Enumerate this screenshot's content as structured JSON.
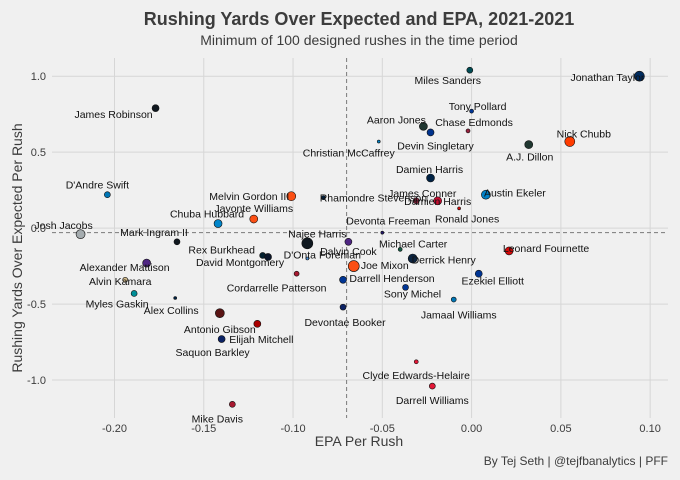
{
  "chart_data": {
    "type": "scatter",
    "title": "Rushing Yards Over Expected and EPA, 2021-2021",
    "subtitle": "Minimum of 100 designed rushes in the time period",
    "xlabel": "EPA Per Rush",
    "ylabel": "Rushing Yards Over Expected Per Rush",
    "caption": "By Tej Seth | @tejfbanalytics | PFF",
    "xlim": [
      -0.235,
      0.11
    ],
    "ylim": [
      -1.25,
      1.12
    ],
    "xticks": [
      -0.2,
      -0.15,
      -0.1,
      -0.05,
      0.0,
      0.05,
      0.1
    ],
    "xtick_labels": [
      "-0.20",
      "-0.15",
      "-0.10",
      "-0.05",
      "0.00",
      "0.05",
      "0.10"
    ],
    "yticks": [
      -1.0,
      -0.5,
      0.0,
      0.5,
      1.0
    ],
    "ytick_labels": [
      "-1.0",
      "-0.5",
      "0.0",
      "0.5",
      "1.0"
    ],
    "vline_x": -0.07,
    "hline_y": -0.03,
    "grid": true,
    "points": [
      {
        "name": "Miles Sanders",
        "x": -0.001,
        "y": 1.04,
        "size": 3,
        "color": "#004c54"
      },
      {
        "name": "Jonathan Taylor",
        "x": 0.094,
        "y": 1.0,
        "size": 5,
        "color": "#002c5f"
      },
      {
        "name": "James Robinson",
        "x": -0.177,
        "y": 0.79,
        "size": 3.5,
        "color": "#101820"
      },
      {
        "name": "Tony Pollard",
        "x": 0.0,
        "y": 0.77,
        "size": 2,
        "color": "#003594"
      },
      {
        "name": "Aaron Jones",
        "x": -0.027,
        "y": 0.67,
        "size": 4,
        "color": "#203731"
      },
      {
        "name": "Chase Edmonds",
        "x": -0.002,
        "y": 0.64,
        "size": 2,
        "color": "#97233f"
      },
      {
        "name": "Devin Singletary",
        "x": -0.023,
        "y": 0.63,
        "size": 3.5,
        "color": "#00338d"
      },
      {
        "name": "Nick Chubb",
        "x": 0.055,
        "y": 0.57,
        "size": 5,
        "color": "#ff3c00"
      },
      {
        "name": "A.J. Dillon",
        "x": 0.032,
        "y": 0.55,
        "size": 4,
        "color": "#203731"
      },
      {
        "name": "Christian McCaffrey",
        "x": -0.052,
        "y": 0.57,
        "size": 1.5,
        "color": "#0085ca"
      },
      {
        "name": "Damien Harris",
        "x": -0.023,
        "y": 0.33,
        "size": 4,
        "color": "#002244"
      },
      {
        "name": "D'Andre Swift",
        "x": -0.204,
        "y": 0.22,
        "size": 3,
        "color": "#0076b6"
      },
      {
        "name": "Melvin Gordon III",
        "x": -0.101,
        "y": 0.21,
        "size": 4.5,
        "color": "#fb4f14"
      },
      {
        "name": "Rhamondre Stevenson",
        "x": -0.083,
        "y": 0.2,
        "size": 2,
        "color": "#002244"
      },
      {
        "name": "Austin Ekeler",
        "x": 0.008,
        "y": 0.22,
        "size": 4.5,
        "color": "#0080c6"
      },
      {
        "name": "James Conner",
        "x": -0.031,
        "y": 0.18,
        "size": 3,
        "color": "#97233f"
      },
      {
        "name": "Damien Harris",
        "x": -0.019,
        "y": 0.18,
        "size": 4,
        "color": "#c60c30"
      },
      {
        "name": "Ronald Jones",
        "x": -0.007,
        "y": 0.13,
        "size": 1.5,
        "color": "#d50a0a"
      },
      {
        "name": "Javonte Williams",
        "x": -0.122,
        "y": 0.06,
        "size": 4,
        "color": "#fb4f14"
      },
      {
        "name": "Josh Jacobs",
        "x": -0.219,
        "y": -0.04,
        "size": 4.5,
        "color": "#a5acaf"
      },
      {
        "name": "Chuba Hubbard",
        "x": -0.142,
        "y": 0.03,
        "size": 4,
        "color": "#0085ca"
      },
      {
        "name": "Devonta Freeman",
        "x": -0.05,
        "y": -0.03,
        "size": 1.5,
        "color": "#241773"
      },
      {
        "name": "Najee Harris",
        "x": -0.092,
        "y": -0.1,
        "size": 5.5,
        "color": "#101820"
      },
      {
        "name": "Dalvin Cook",
        "x": -0.069,
        "y": -0.09,
        "size": 3.5,
        "color": "#4f2683"
      },
      {
        "name": "Michael Carter",
        "x": -0.04,
        "y": -0.14,
        "size": 2,
        "color": "#125740"
      },
      {
        "name": "Leonard Fournette",
        "x": 0.021,
        "y": -0.15,
        "size": 4,
        "color": "#d50a0a"
      },
      {
        "name": "Rex Burkhead",
        "x": -0.117,
        "y": -0.18,
        "size": 3,
        "color": "#03202f"
      },
      {
        "name": "Mark Ingram II",
        "x": -0.165,
        "y": -0.09,
        "size": 3,
        "color": "#101820"
      },
      {
        "name": "Derrick Henry",
        "x": -0.033,
        "y": -0.2,
        "size": 4.5,
        "color": "#0c2340"
      },
      {
        "name": "Joe Mixon",
        "x": -0.066,
        "y": -0.25,
        "size": 5.5,
        "color": "#fb4f14"
      },
      {
        "name": "David Montgomery",
        "x": -0.114,
        "y": -0.19,
        "size": 3.5,
        "color": "#0b162a"
      },
      {
        "name": "Alexander Mattison",
        "x": -0.182,
        "y": -0.23,
        "size": 4,
        "color": "#4f2683"
      },
      {
        "name": "D'Onta Foreman",
        "x": -0.092,
        "y": -0.2,
        "size": 1.5,
        "color": "#4b92db"
      },
      {
        "name": "Alvin Kamara",
        "x": -0.194,
        "y": -0.34,
        "size": 2.5,
        "color": "#d3bc8d"
      },
      {
        "name": "Cordarrelle Patterson",
        "x": -0.098,
        "y": -0.3,
        "size": 2.5,
        "color": "#a71930"
      },
      {
        "name": "Ezekiel Elliott",
        "x": 0.004,
        "y": -0.3,
        "size": 3.5,
        "color": "#003594"
      },
      {
        "name": "Darrell Henderson",
        "x": -0.072,
        "y": -0.34,
        "size": 3.5,
        "color": "#003594"
      },
      {
        "name": "Myles Gaskin",
        "x": -0.189,
        "y": -0.43,
        "size": 3,
        "color": "#008e97"
      },
      {
        "name": "Alex Collins",
        "x": -0.166,
        "y": -0.46,
        "size": 1.5,
        "color": "#002244"
      },
      {
        "name": "Sony Michel",
        "x": -0.037,
        "y": -0.39,
        "size": 3,
        "color": "#003594"
      },
      {
        "name": "Jamaal Williams",
        "x": -0.01,
        "y": -0.47,
        "size": 2.5,
        "color": "#0076b6"
      },
      {
        "name": "Devontae Booker",
        "x": -0.072,
        "y": -0.52,
        "size": 3,
        "color": "#0b2265"
      },
      {
        "name": "Antonio Gibson",
        "x": -0.141,
        "y": -0.56,
        "size": 4.5,
        "color": "#5a1414"
      },
      {
        "name": "Elijah Mitchell",
        "x": -0.12,
        "y": -0.63,
        "size": 3.5,
        "color": "#aa0000"
      },
      {
        "name": "Saquon Barkley",
        "x": -0.14,
        "y": -0.73,
        "size": 3.5,
        "color": "#0b2265"
      },
      {
        "name": "Clyde Edwards-Helaire",
        "x": -0.031,
        "y": -0.88,
        "size": 2,
        "color": "#e31837"
      },
      {
        "name": "Darrell Williams",
        "x": -0.022,
        "y": -1.04,
        "size": 3,
        "color": "#e31837"
      },
      {
        "name": "Mike Davis",
        "x": -0.134,
        "y": -1.16,
        "size": 3,
        "color": "#a71930"
      }
    ]
  }
}
